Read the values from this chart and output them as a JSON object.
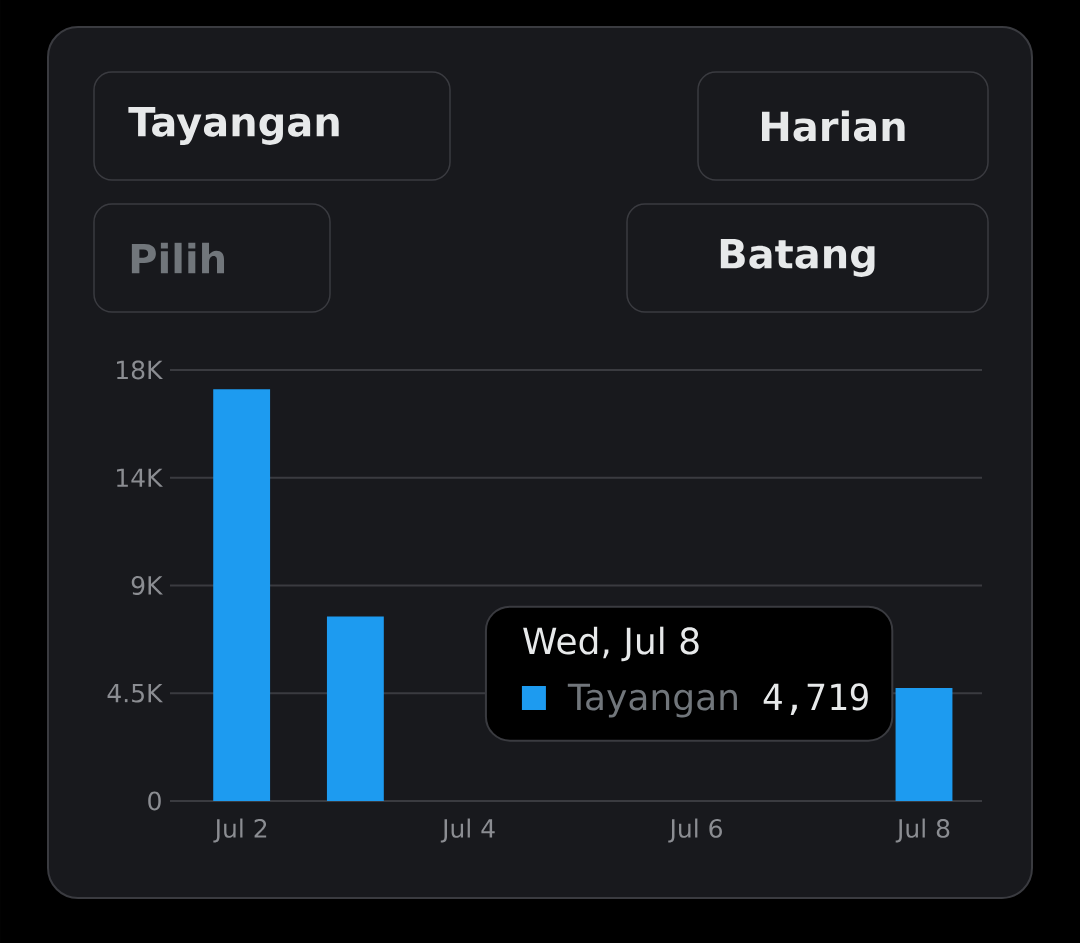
{
  "chart_data": {
    "type": "bar",
    "categories": [
      "Jul 2",
      null,
      "Jul 4",
      null,
      "Jul 6",
      null,
      "Jul 8"
    ],
    "series": [
      {
        "name": "Tayangan",
        "color": "#1d9bf0",
        "values": [
          17200,
          7700,
          null,
          null,
          null,
          null,
          4719
        ]
      }
    ],
    "ylim": [
      0,
      18000
    ],
    "yticks": [
      0,
      {
        "value": 4500,
        "label": "4.5K"
      },
      {
        "value": 9000,
        "label": "9K"
      },
      {
        "value": 13500,
        "label": "14K"
      },
      {
        "value": 18000,
        "label": "18K"
      }
    ],
    "grid": "y",
    "annotations": [
      "Tayangan",
      "Harian",
      "Pilih",
      "Batang",
      "Wed, Jul 8",
      "4,719"
    ]
  }
}
